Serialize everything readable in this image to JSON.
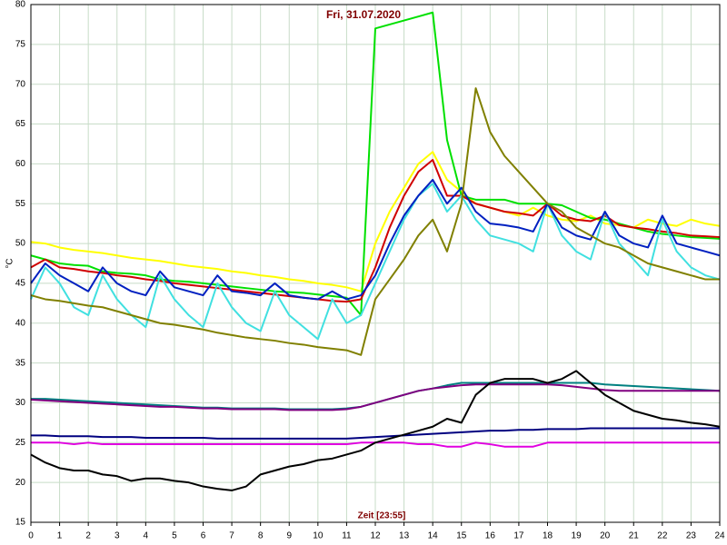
{
  "chart_data": {
    "type": "line",
    "title": "Fri, 31.07.2020",
    "x_label": "Zeit [23:55]",
    "y_label": "°C",
    "grid": true,
    "xlim": [
      0,
      24
    ],
    "xticks": [
      0,
      1,
      2,
      3,
      4,
      5,
      6,
      7,
      8,
      9,
      10,
      11,
      12,
      13,
      14,
      15,
      16,
      17,
      18,
      19,
      20,
      21,
      22,
      23,
      24
    ],
    "ylim": [
      15,
      80
    ],
    "yticks": [
      15,
      20,
      25,
      30,
      35,
      40,
      45,
      50,
      55,
      60,
      65,
      70,
      75,
      80
    ],
    "x": [
      0,
      0.5,
      1,
      1.5,
      2,
      2.5,
      3,
      3.5,
      4,
      4.5,
      5,
      5.5,
      6,
      6.5,
      7,
      7.5,
      8,
      8.5,
      9,
      9.5,
      10,
      10.5,
      11,
      11.5,
      12,
      12.5,
      13,
      13.5,
      14,
      14.5,
      15,
      15.5,
      16,
      16.5,
      17,
      17.5,
      18,
      18.5,
      19,
      19.5,
      20,
      20.5,
      21,
      21.5,
      22,
      22.5,
      23,
      23.5,
      24
    ],
    "series": [
      {
        "color": "#ffff00",
        "values": [
          50.2,
          50,
          49.5,
          49.2,
          49,
          48.8,
          48.5,
          48.2,
          48,
          47.8,
          47.5,
          47.2,
          47,
          46.8,
          46.5,
          46.3,
          46,
          45.8,
          45.5,
          45.3,
          45,
          44.8,
          44.5,
          44,
          50,
          54,
          57,
          60,
          61.5,
          58,
          56.5,
          55,
          54.5,
          54,
          53.5,
          54.5,
          53.5,
          53,
          52.8,
          53.5,
          52.5,
          52.3,
          52,
          53,
          52.5,
          52.2,
          53,
          52.5,
          52.2
        ]
      },
      {
        "color": "#00e000",
        "values": [
          48.5,
          48,
          47.5,
          47.3,
          47.2,
          46.5,
          46.3,
          46.2,
          46,
          45.5,
          45.3,
          45.2,
          45,
          44.8,
          44.6,
          44.4,
          44.2,
          44,
          43.9,
          43.8,
          43.6,
          43.4,
          43.2,
          41,
          77,
          77.5,
          78,
          78.5,
          79,
          63,
          56,
          55.5,
          55.5,
          55.5,
          55,
          55,
          55,
          54.8,
          54,
          53.2,
          53,
          52.5,
          52,
          51.5,
          51.2,
          51,
          50.8,
          50.7,
          50.6
        ]
      },
      {
        "color": "#d00000",
        "values": [
          47,
          48,
          47,
          46.8,
          46.5,
          46.3,
          46,
          45.8,
          45.5,
          45.3,
          45,
          44.8,
          44.6,
          44.4,
          44.2,
          44,
          43.8,
          43.6,
          43.4,
          43.2,
          43,
          42.8,
          42.7,
          43,
          47,
          52,
          56,
          59,
          60.5,
          56,
          56,
          55,
          54.5,
          54,
          53.8,
          53.5,
          55,
          53.5,
          53,
          52.8,
          53.5,
          52.3,
          52,
          51.8,
          51.5,
          51.3,
          51,
          50.9,
          50.8
        ]
      },
      {
        "color": "#40e0e0",
        "values": [
          43,
          47,
          45,
          42,
          41,
          46,
          43,
          41,
          39.5,
          46,
          43,
          41,
          39.5,
          45,
          42,
          40,
          39,
          44,
          41,
          39.5,
          38,
          43,
          40,
          41,
          45,
          49,
          53,
          56,
          57.5,
          54,
          56,
          53,
          51,
          50.5,
          50,
          49,
          55,
          51,
          49,
          48,
          54,
          50,
          48,
          46,
          53,
          49,
          47,
          46,
          45.5
        ]
      },
      {
        "color": "#0020c0",
        "values": [
          45,
          47.5,
          46,
          45,
          44,
          47,
          45,
          44,
          43.5,
          46.5,
          44.5,
          44,
          43.5,
          46,
          44,
          43.8,
          43.5,
          45,
          43.5,
          43.2,
          43,
          44,
          43,
          43.5,
          46,
          50,
          53.5,
          56,
          58,
          55,
          57,
          54,
          52.5,
          52.3,
          52,
          51.5,
          55,
          52,
          51,
          50.5,
          54,
          51,
          50,
          49.5,
          53.5,
          50,
          49.5,
          49,
          48.5
        ]
      },
      {
        "color": "#808000",
        "values": [
          43.5,
          43,
          42.8,
          42.5,
          42.2,
          42,
          41.5,
          41,
          40.5,
          40,
          39.8,
          39.5,
          39.2,
          38.8,
          38.5,
          38.2,
          38,
          37.8,
          37.5,
          37.3,
          37,
          36.8,
          36.6,
          36,
          43,
          45.5,
          48,
          51,
          53,
          49,
          55,
          69.5,
          64,
          61,
          59,
          57,
          55,
          54,
          52,
          51,
          50,
          49.5,
          48.5,
          47.5,
          47,
          46.5,
          46,
          45.5,
          45.5
        ]
      },
      {
        "color": "#008080",
        "values": [
          30.5,
          30.5,
          30.4,
          30.3,
          30.2,
          30.1,
          30,
          29.9,
          29.8,
          29.7,
          29.6,
          29.5,
          29.4,
          29.4,
          29.3,
          29.3,
          29.3,
          29.3,
          29.2,
          29.2,
          29.2,
          29.2,
          29.3,
          29.5,
          30,
          30.5,
          31,
          31.5,
          31.8,
          32.2,
          32.5,
          32.5,
          32.5,
          32.5,
          32.5,
          32.5,
          32.5,
          32.5,
          32.5,
          32.5,
          32.3,
          32.2,
          32.1,
          32,
          31.9,
          31.8,
          31.7,
          31.6,
          31.5
        ]
      },
      {
        "color": "#800080",
        "values": [
          30.4,
          30.3,
          30.2,
          30.1,
          30,
          29.9,
          29.8,
          29.7,
          29.6,
          29.5,
          29.5,
          29.4,
          29.3,
          29.3,
          29.2,
          29.2,
          29.2,
          29.2,
          29.1,
          29.1,
          29.1,
          29.1,
          29.2,
          29.5,
          30,
          30.5,
          31,
          31.5,
          31.8,
          32,
          32.2,
          32.3,
          32.3,
          32.3,
          32.3,
          32.3,
          32.3,
          32.2,
          32,
          31.8,
          31.6,
          31.5,
          31.5,
          31.5,
          31.5,
          31.5,
          31.5,
          31.5,
          31.5
        ]
      },
      {
        "color": "#000080",
        "values": [
          25.9,
          25.9,
          25.8,
          25.8,
          25.8,
          25.7,
          25.7,
          25.7,
          25.6,
          25.6,
          25.6,
          25.6,
          25.6,
          25.5,
          25.5,
          25.5,
          25.5,
          25.5,
          25.5,
          25.5,
          25.5,
          25.5,
          25.5,
          25.6,
          25.7,
          25.8,
          25.9,
          26,
          26.1,
          26.2,
          26.3,
          26.4,
          26.5,
          26.5,
          26.6,
          26.6,
          26.7,
          26.7,
          26.7,
          26.8,
          26.8,
          26.8,
          26.8,
          26.8,
          26.8,
          26.8,
          26.8,
          26.8,
          26.8
        ]
      },
      {
        "color": "#e000e0",
        "values": [
          25,
          25,
          25,
          24.8,
          25,
          24.8,
          24.8,
          24.8,
          24.8,
          24.8,
          24.8,
          24.8,
          24.8,
          24.8,
          24.8,
          24.8,
          24.8,
          24.8,
          24.8,
          24.8,
          24.8,
          24.8,
          24.8,
          25,
          25,
          25,
          25,
          24.8,
          24.8,
          24.5,
          24.5,
          25,
          24.8,
          24.5,
          24.5,
          24.5,
          25,
          25,
          25,
          25,
          25,
          25,
          25,
          25,
          25,
          25,
          25,
          25,
          25
        ]
      },
      {
        "color": "#000000",
        "values": [
          23.5,
          22.5,
          21.8,
          21.5,
          21.5,
          21,
          20.8,
          20.2,
          20.5,
          20.5,
          20.2,
          20,
          19.5,
          19.2,
          19,
          19.5,
          21,
          21.5,
          22,
          22.3,
          22.8,
          23,
          23.5,
          24,
          25,
          25.5,
          26,
          26.5,
          27,
          28,
          27.5,
          31,
          32.5,
          33,
          33,
          33,
          32.5,
          33,
          34,
          32.5,
          31,
          30,
          29,
          28.5,
          28,
          27.8,
          27.5,
          27.3,
          27
        ]
      }
    ]
  }
}
